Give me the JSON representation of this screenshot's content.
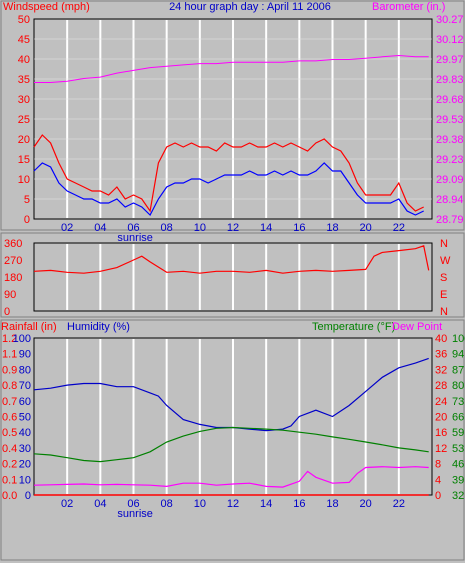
{
  "title": "24 hour graph day : April 11 2006",
  "colors": {
    "windspeed": "#ff0000",
    "gust": "#ff0000",
    "avg_wind": "#0000ff",
    "barometer": "#ff00ff",
    "direction": "#ff0000",
    "humidity": "#0000c8",
    "temperature": "#008000",
    "dewpoint": "#ff00ff",
    "rainfall": "#ff0000",
    "plot_bg": "#c0c0c0",
    "grid": "#ffffff"
  },
  "x_ticks": [
    "02",
    "04",
    "06",
    "08",
    "10",
    "12",
    "14",
    "16",
    "18",
    "20",
    "22"
  ],
  "sunrise_label": "sunrise",
  "chart_data": [
    {
      "type": "line",
      "name": "wind-barometer",
      "left_axis_title": "Windspeed (mph)",
      "right_axis_title": "Barometer (in.)",
      "x_range": [
        0,
        24
      ],
      "ylim_left": [
        0,
        50
      ],
      "ylim_right": [
        28.79,
        30.27
      ],
      "left_ticks": [
        "0",
        "2.5",
        "5",
        "7.5",
        "10",
        "12.5",
        "15",
        "17.5",
        "20",
        "22.5",
        "25",
        "27.5",
        "30",
        "32.5",
        "35",
        "37.5",
        "40",
        "42.5",
        "45",
        "47.5",
        "50"
      ],
      "left_tick_values": [
        0,
        2.5,
        5,
        7.5,
        10,
        12.5,
        15,
        17.5,
        20,
        22.5,
        25,
        27.5,
        30,
        32.5,
        35,
        37.5,
        40,
        42.5,
        45,
        47.5,
        50
      ],
      "right_ticks": [
        "28.79",
        "28.94",
        "29.09",
        "29.23",
        "29.38",
        "29.53",
        "29.68",
        "29.83",
        "29.97",
        "30.12",
        "30.27"
      ],
      "series": [
        {
          "key": "gust",
          "x": [
            0,
            0.5,
            1,
            1.5,
            2,
            2.5,
            3,
            3.5,
            4,
            4.5,
            5,
            5.5,
            6,
            6.5,
            7,
            7.5,
            8,
            8.5,
            9,
            9.5,
            10,
            10.5,
            11,
            11.5,
            12,
            12.5,
            13,
            13.5,
            14,
            14.5,
            15,
            15.5,
            16,
            16.5,
            17,
            17.5,
            18,
            18.5,
            19,
            19.5,
            20,
            20.5,
            21,
            21.5,
            22,
            22.5,
            23,
            23.5
          ],
          "y": [
            18,
            21,
            19,
            14,
            10,
            9,
            8,
            7,
            7,
            6,
            8,
            5,
            6,
            5,
            2,
            14,
            18,
            19,
            18,
            19,
            18,
            18,
            17,
            19,
            18,
            18,
            19,
            18,
            18,
            19,
            18,
            19,
            18,
            17,
            19,
            20,
            18,
            17,
            14,
            9,
            6,
            6,
            6,
            6,
            9,
            4,
            2,
            3
          ]
        },
        {
          "key": "avg_wind",
          "x": [
            0,
            0.5,
            1,
            1.5,
            2,
            2.5,
            3,
            3.5,
            4,
            4.5,
            5,
            5.5,
            6,
            6.5,
            7,
            7.5,
            8,
            8.5,
            9,
            9.5,
            10,
            10.5,
            11,
            11.5,
            12,
            12.5,
            13,
            13.5,
            14,
            14.5,
            15,
            15.5,
            16,
            16.5,
            17,
            17.5,
            18,
            18.5,
            19,
            19.5,
            20,
            20.5,
            21,
            21.5,
            22,
            22.5,
            23,
            23.5
          ],
          "y": [
            12,
            14,
            13,
            9,
            7,
            6,
            5,
            5,
            4,
            4,
            5,
            3,
            4,
            3,
            1,
            5,
            8,
            9,
            9,
            10,
            10,
            9,
            10,
            11,
            11,
            11,
            12,
            11,
            11,
            12,
            11,
            12,
            11,
            11,
            12,
            14,
            12,
            12,
            9,
            6,
            4,
            4,
            4,
            4,
            5,
            2,
            1,
            2
          ]
        },
        {
          "key": "barometer",
          "x": [
            0,
            1,
            2,
            3,
            4,
            5,
            6,
            7,
            8,
            9,
            10,
            11,
            12,
            13,
            14,
            15,
            16,
            17,
            18,
            19,
            20,
            21,
            22,
            23,
            23.8
          ],
          "y": [
            29.8,
            29.8,
            29.81,
            29.83,
            29.84,
            29.87,
            29.89,
            29.91,
            29.92,
            29.93,
            29.94,
            29.94,
            29.95,
            29.95,
            29.95,
            29.95,
            29.96,
            29.96,
            29.97,
            29.97,
            29.98,
            29.99,
            30.0,
            29.99,
            29.99
          ]
        }
      ]
    },
    {
      "type": "line",
      "name": "wind-direction",
      "ylim": [
        0,
        360
      ],
      "left_ticks": [
        "0",
        "90",
        "180",
        "270",
        "360"
      ],
      "left_tick_values": [
        0,
        90,
        180,
        270,
        360
      ],
      "right_ticks": [
        "N",
        "E",
        "S",
        "W",
        "N"
      ],
      "series": [
        {
          "key": "direction",
          "x": [
            0,
            1,
            2,
            3,
            4,
            5,
            6,
            6.5,
            7,
            8,
            9,
            10,
            11,
            12,
            13,
            14,
            15,
            16,
            17,
            18,
            19,
            20,
            20.5,
            21,
            22,
            23,
            23.5,
            23.8
          ],
          "y": [
            210,
            215,
            205,
            200,
            210,
            230,
            270,
            290,
            260,
            205,
            210,
            200,
            210,
            210,
            205,
            215,
            200,
            210,
            215,
            210,
            215,
            220,
            290,
            310,
            320,
            330,
            345,
            215
          ]
        }
      ]
    },
    {
      "type": "line",
      "name": "rain-humidity-temperature",
      "rainfall_axis_title": "Rainfall (in)",
      "humidity_axis_title": "Humidity (%)",
      "temperature_axis_title": "Temperature (°F)",
      "dewpoint_axis_title": "Dew Point",
      "ylim_humidity": [
        0,
        100
      ],
      "humidity_ticks": [
        "0",
        "10",
        "20",
        "30",
        "40",
        "50",
        "60",
        "70",
        "80",
        "90",
        "100"
      ],
      "humidity_tick_values": [
        0,
        10,
        20,
        30,
        40,
        50,
        60,
        70,
        80,
        90,
        100
      ],
      "rain_ticks": [
        "0.0",
        "0.1",
        "0.2",
        "0.4",
        "0.5",
        "0.6",
        "0.7",
        "0.8",
        "0.9",
        "1.1",
        "1.2"
      ],
      "ylim_temperature": [
        0,
        40
      ],
      "temperature_ticks": [
        "0",
        "4",
        "8",
        "12",
        "16",
        "20",
        "24",
        "28",
        "32",
        "36",
        "40"
      ],
      "dewpoint_ticks": [
        "32",
        "39",
        "46",
        "53",
        "59",
        "66",
        "73",
        "80",
        "87",
        "94",
        "100"
      ],
      "series": [
        {
          "key": "humidity",
          "x": [
            0,
            1,
            2,
            3,
            4,
            5,
            6,
            7,
            7.5,
            8,
            9,
            10,
            11,
            12,
            13,
            14,
            15,
            15.5,
            16,
            17,
            18,
            19,
            20,
            21,
            22,
            23,
            23.8
          ],
          "y": [
            67,
            68,
            70,
            71,
            71,
            69,
            69,
            65,
            63,
            57,
            48,
            45,
            43,
            43,
            42,
            41,
            42,
            44,
            50,
            54,
            50,
            57,
            66,
            75,
            81,
            84,
            87
          ]
        },
        {
          "key": "temperature",
          "x": [
            0,
            1,
            2,
            3,
            4,
            5,
            6,
            7,
            8,
            9,
            10,
            11,
            12,
            13,
            14,
            15,
            16,
            17,
            18,
            19,
            20,
            21,
            22,
            23,
            23.8
          ],
          "y": [
            10.5,
            10.2,
            9.5,
            8.8,
            8.5,
            9.0,
            9.5,
            11.0,
            13.5,
            15.0,
            16.2,
            17.0,
            17.2,
            17.0,
            16.8,
            16.5,
            16.0,
            15.5,
            14.8,
            14.2,
            13.5,
            12.8,
            12.0,
            11.5,
            11.0
          ]
        },
        {
          "key": "dewpoint",
          "x": [
            0,
            1,
            2,
            3,
            4,
            5,
            6,
            7,
            8,
            9,
            10,
            11,
            12,
            13,
            14,
            15,
            16,
            16.5,
            17,
            18,
            19,
            19.5,
            20,
            21,
            22,
            23,
            23.8
          ],
          "y": [
            2.5,
            2.6,
            2.7,
            2.8,
            2.6,
            2.7,
            2.6,
            2.5,
            2.2,
            3.0,
            3.0,
            2.5,
            2.8,
            3.0,
            2.2,
            2.0,
            3.5,
            6.0,
            4.5,
            3.0,
            3.2,
            5.5,
            7.0,
            7.2,
            7.0,
            7.2,
            7.0
          ]
        },
        {
          "key": "rainfall",
          "x": [
            0,
            23.8
          ],
          "y": [
            0,
            0
          ]
        }
      ]
    }
  ]
}
